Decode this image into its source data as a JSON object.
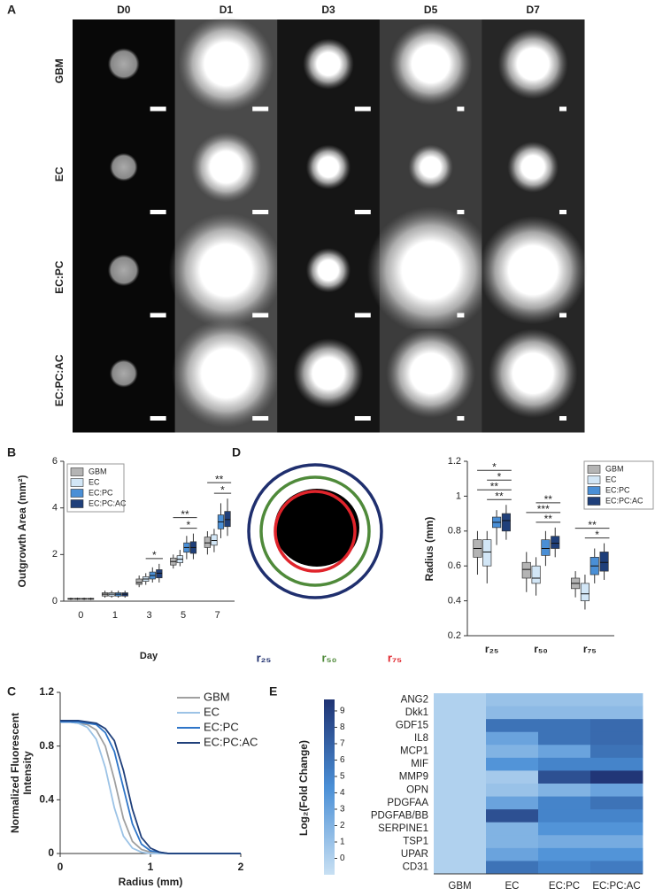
{
  "panel_a": {
    "label": "A",
    "columns": [
      "D0",
      "D1",
      "D3",
      "D5",
      "D7"
    ],
    "rows": [
      "GBM",
      "EC",
      "EC:PC",
      "EC:PC:AC"
    ]
  },
  "chart_data": [
    {
      "type": "box",
      "panel_label": "B",
      "ylabel": "Outgrowth Area (mm²)",
      "xlabel": "Day",
      "categories": [
        "0",
        "1",
        "3",
        "5",
        "7"
      ],
      "ylim": [
        0,
        6
      ],
      "yticks": [
        0,
        2,
        4,
        6
      ],
      "legend": "upper-left",
      "series": [
        {
          "name": "GBM",
          "color": "#b4b4b4",
          "whisker_low": [
            0.05,
            0.15,
            0.6,
            1.4,
            2.0
          ],
          "q1": [
            0.08,
            0.22,
            0.72,
            1.55,
            2.3
          ],
          "median": [
            0.1,
            0.3,
            0.8,
            1.7,
            2.5
          ],
          "q3": [
            0.12,
            0.36,
            0.95,
            1.85,
            2.75
          ],
          "whisker_high": [
            0.15,
            0.45,
            1.1,
            2.0,
            3.0
          ]
        },
        {
          "name": "EC",
          "color": "#d2e6f6",
          "whisker_low": [
            0.05,
            0.15,
            0.7,
            1.5,
            2.1
          ],
          "q1": [
            0.08,
            0.22,
            0.85,
            1.65,
            2.4
          ],
          "median": [
            0.1,
            0.3,
            0.95,
            1.8,
            2.6
          ],
          "q3": [
            0.12,
            0.36,
            1.05,
            1.95,
            2.85
          ],
          "whisker_high": [
            0.15,
            0.45,
            1.2,
            2.2,
            3.1
          ]
        },
        {
          "name": "EC:PC",
          "color": "#4a8fd6",
          "whisker_low": [
            0.05,
            0.15,
            0.8,
            1.8,
            2.7
          ],
          "q1": [
            0.08,
            0.22,
            0.95,
            2.1,
            3.1
          ],
          "median": [
            0.1,
            0.3,
            1.1,
            2.3,
            3.4
          ],
          "q3": [
            0.12,
            0.36,
            1.25,
            2.5,
            3.7
          ],
          "whisker_high": [
            0.15,
            0.45,
            1.45,
            2.8,
            4.2
          ]
        },
        {
          "name": "EC:PC:AC",
          "color": "#1f3f7a",
          "whisker_low": [
            0.05,
            0.15,
            0.8,
            1.8,
            2.8
          ],
          "q1": [
            0.08,
            0.22,
            1.0,
            2.05,
            3.2
          ],
          "median": [
            0.1,
            0.3,
            1.2,
            2.3,
            3.5
          ],
          "q3": [
            0.12,
            0.36,
            1.35,
            2.55,
            3.85
          ],
          "whisker_high": [
            0.15,
            0.45,
            1.6,
            2.9,
            4.4
          ]
        }
      ],
      "annotations": [
        {
          "category": "3",
          "text": "*"
        },
        {
          "category": "5",
          "text": "*"
        },
        {
          "category": "5",
          "text": "**"
        },
        {
          "category": "7",
          "text": "*"
        },
        {
          "category": "7",
          "text": "**"
        }
      ]
    },
    {
      "type": "box",
      "panel_label": "D",
      "ylabel": "Radius (mm)",
      "schematic_labels": [
        "r₂₅",
        "r₅₀",
        "r₇₅"
      ],
      "categories": [
        "r₂₅",
        "r₅₀",
        "r₇₅"
      ],
      "ylim": [
        0.2,
        1.2
      ],
      "yticks": [
        0.2,
        0.4,
        0.6,
        0.8,
        1,
        1.2
      ],
      "legend": "upper-right",
      "series": [
        {
          "name": "GBM",
          "color": "#b4b4b4",
          "whisker_low": [
            0.55,
            0.45,
            0.42
          ],
          "q1": [
            0.65,
            0.53,
            0.47
          ],
          "median": [
            0.7,
            0.58,
            0.5
          ],
          "q3": [
            0.75,
            0.62,
            0.53
          ],
          "whisker_high": [
            0.8,
            0.68,
            0.57
          ]
        },
        {
          "name": "EC",
          "color": "#d2e6f6",
          "whisker_low": [
            0.5,
            0.43,
            0.35
          ],
          "q1": [
            0.6,
            0.5,
            0.4
          ],
          "median": [
            0.68,
            0.53,
            0.44
          ],
          "q3": [
            0.75,
            0.6,
            0.5
          ],
          "whisker_high": [
            0.8,
            0.65,
            0.55
          ]
        },
        {
          "name": "EC:PC",
          "color": "#4a8fd6",
          "whisker_low": [
            0.72,
            0.6,
            0.5
          ],
          "q1": [
            0.82,
            0.66,
            0.55
          ],
          "median": [
            0.85,
            0.7,
            0.6
          ],
          "q3": [
            0.88,
            0.75,
            0.65
          ],
          "whisker_high": [
            0.92,
            0.8,
            0.7
          ]
        },
        {
          "name": "EC:PC:AC",
          "color": "#1f3f7a",
          "whisker_low": [
            0.75,
            0.65,
            0.52
          ],
          "q1": [
            0.8,
            0.7,
            0.57
          ],
          "median": [
            0.86,
            0.73,
            0.62
          ],
          "q3": [
            0.9,
            0.77,
            0.68
          ],
          "whisker_high": [
            0.95,
            0.82,
            0.73
          ]
        }
      ],
      "annotations": [
        {
          "category": "r₂₅",
          "text": "**"
        },
        {
          "category": "r₂₅",
          "text": "**"
        },
        {
          "category": "r₂₅",
          "text": "*"
        },
        {
          "category": "r₂₅",
          "text": "*"
        },
        {
          "category": "r₅₀",
          "text": "**"
        },
        {
          "category": "r₅₀",
          "text": "***"
        },
        {
          "category": "r₅₀",
          "text": "**"
        },
        {
          "category": "r₇₅",
          "text": "*"
        },
        {
          "category": "r₇₅",
          "text": "**"
        }
      ]
    },
    {
      "type": "line",
      "panel_label": "C",
      "ylabel": [
        "Normalized Fluorescent",
        "Intensity"
      ],
      "xlabel": "Radius (mm)",
      "x": [
        0,
        0.1,
        0.2,
        0.3,
        0.4,
        0.5,
        0.6,
        0.7,
        0.8,
        0.9,
        1.0,
        1.1,
        1.2,
        1.3,
        1.4,
        1.5,
        1.6,
        1.7,
        1.8,
        1.9,
        2.0
      ],
      "xlim": [
        0,
        2
      ],
      "xticks": [
        0,
        1,
        2
      ],
      "ylim": [
        0,
        1.2
      ],
      "yticks": [
        0,
        0.4,
        0.8,
        1.2
      ],
      "legend": "upper-right",
      "series": [
        {
          "name": "GBM",
          "color": "#a0a0a0",
          "values": [
            0.98,
            0.98,
            0.97,
            0.96,
            0.92,
            0.8,
            0.55,
            0.26,
            0.09,
            0.03,
            0.01,
            0,
            0,
            0,
            0,
            0,
            0,
            0,
            0,
            0,
            0
          ]
        },
        {
          "name": "EC",
          "color": "#9cc3e6",
          "values": [
            0.98,
            0.98,
            0.97,
            0.94,
            0.85,
            0.64,
            0.34,
            0.13,
            0.04,
            0.01,
            0,
            0,
            0,
            0,
            0,
            0,
            0,
            0,
            0,
            0,
            0
          ]
        },
        {
          "name": "EC:PC",
          "color": "#2e75c8",
          "values": [
            0.98,
            0.98,
            0.98,
            0.97,
            0.96,
            0.9,
            0.76,
            0.49,
            0.22,
            0.07,
            0.02,
            0.01,
            0,
            0,
            0,
            0,
            0,
            0,
            0,
            0,
            0
          ]
        },
        {
          "name": "EC:PC:AC",
          "color": "#1f3f7a",
          "values": [
            0.99,
            0.99,
            0.99,
            0.98,
            0.97,
            0.93,
            0.84,
            0.62,
            0.33,
            0.12,
            0.04,
            0.01,
            0,
            0,
            0,
            0,
            0,
            0,
            0,
            0,
            0
          ]
        }
      ]
    },
    {
      "type": "heatmap",
      "panel_label": "E",
      "colorbar_label": "Log₂(Fold Change)",
      "columns": [
        "GBM",
        "EC",
        "EC:PC",
        "EC:PC:AC"
      ],
      "rows": [
        "ANG2",
        "Dkk1",
        "GDF15",
        "IL8",
        "MCP1",
        "MIF",
        "MMP9",
        "OPN",
        "PDGFAA",
        "PDGFAB/BB",
        "SERPINE1",
        "TSP1",
        "UPAR",
        "CD31"
      ],
      "values": [
        [
          0,
          1,
          1,
          1
        ],
        [
          0,
          1.5,
          1.5,
          1.5
        ],
        [
          0,
          6,
          6,
          6.5
        ],
        [
          0,
          3,
          6,
          6.5
        ],
        [
          0,
          2,
          3,
          6
        ],
        [
          0,
          4,
          5,
          5
        ],
        [
          0,
          0.5,
          8,
          9.5
        ],
        [
          0,
          1,
          2,
          3
        ],
        [
          0,
          3,
          5,
          6
        ],
        [
          0,
          8,
          5,
          5
        ],
        [
          0,
          2,
          4,
          4
        ],
        [
          0,
          2,
          2.5,
          2.5
        ],
        [
          0,
          3,
          4,
          4
        ],
        [
          0,
          6,
          5,
          5.5
        ]
      ],
      "clim": [
        -1,
        9.7
      ],
      "colorbar_ticks": [
        0,
        1,
        2,
        3,
        4,
        5,
        6,
        7,
        8,
        9
      ],
      "colors": [
        "#c8e0f3",
        "#4a8fd6",
        "#1f3373"
      ]
    }
  ]
}
